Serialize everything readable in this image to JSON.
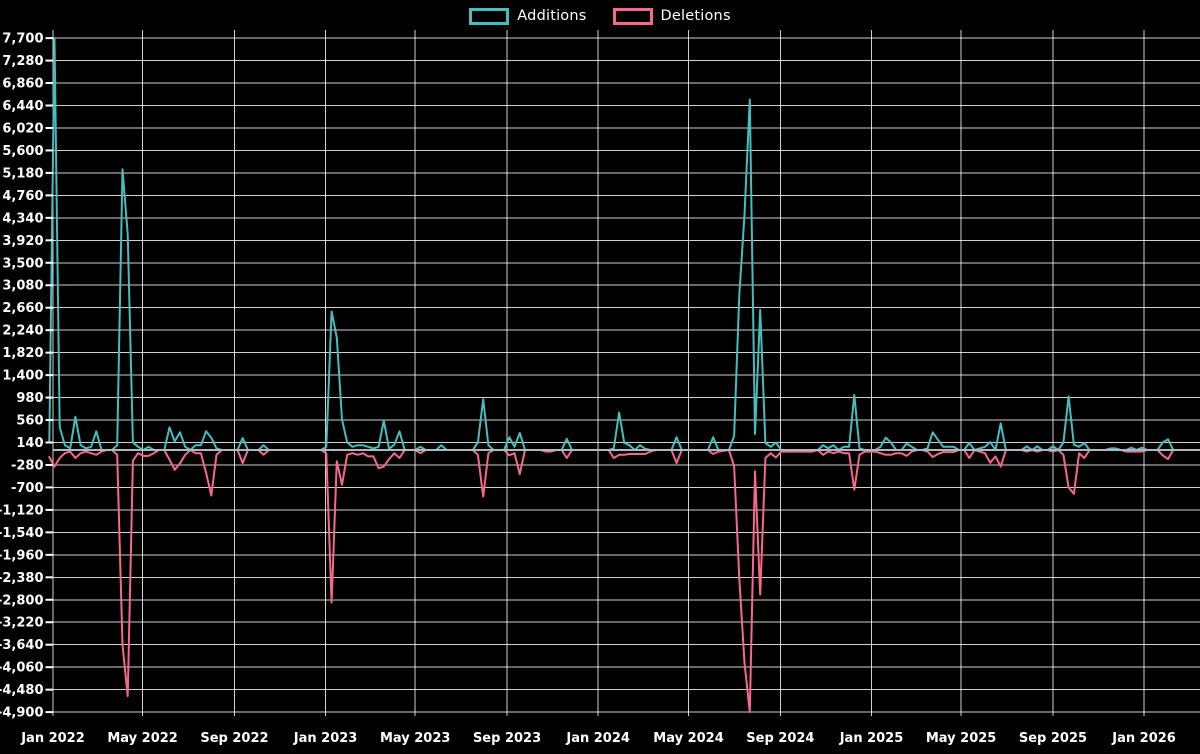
{
  "chart": {
    "background": "#000000",
    "gridline_color": "rgba(255,255,255,0.82)",
    "baseline_color": "#A9BAC1",
    "text_color": "#FFFFFF"
  },
  "chart_data": {
    "type": "line",
    "title": "",
    "legend_position": "top-center",
    "grid": true,
    "series": [
      {
        "name": "Additions",
        "color": "#46BDBE"
      },
      {
        "name": "Deletions",
        "color": "#F8688C"
      }
    ],
    "y_axis": {
      "min": -4900,
      "max": 7700,
      "step": 420,
      "tick_labels": [
        "7,700",
        "7,280",
        "6,860",
        "6,440",
        "6,020",
        "5,600",
        "5,180",
        "4,760",
        "4,340",
        "3,920",
        "3,500",
        "3,080",
        "2,660",
        "2,240",
        "1,820",
        "1,400",
        "980",
        "560",
        "140",
        "-280",
        "-700",
        "-1,120",
        "-1,540",
        "-1,960",
        "-2,380",
        "-2,800",
        "-3,220",
        "-3,640",
        "-4,060",
        "-4,480",
        "-4,900"
      ]
    },
    "x_axis": {
      "tick_labels": [
        "Jan 2022",
        "May 2022",
        "Sep 2022",
        "Jan 2023",
        "May 2023",
        "Sep 2023",
        "Jan 2024",
        "May 2024",
        "Sep 2024",
        "Jan 2025",
        "May 2025",
        "Sep 2025",
        "Jan 2026"
      ],
      "tick_month_offsets": [
        0,
        4,
        8,
        12,
        16,
        20,
        24,
        28,
        32,
        36,
        40,
        44,
        48
      ]
    },
    "points_format": [
      "week_start_date",
      "additions",
      "deletions"
    ],
    "points": [
      [
        "2021-12-27",
        140,
        -130
      ],
      [
        "2022-01-03",
        7700,
        -310
      ],
      [
        "2022-01-10",
        430,
        -150
      ],
      [
        "2022-01-17",
        90,
        -60
      ],
      [
        "2022-01-24",
        30,
        -30
      ],
      [
        "2022-01-31",
        620,
        -150
      ],
      [
        "2022-02-07",
        90,
        -60
      ],
      [
        "2022-02-14",
        30,
        -30
      ],
      [
        "2022-02-21",
        60,
        -60
      ],
      [
        "2022-02-28",
        350,
        -90
      ],
      [
        "2022-03-07",
        0,
        -30
      ],
      [
        "2022-03-14",
        0,
        0
      ],
      [
        "2022-03-21",
        0,
        0
      ],
      [
        "2022-03-28",
        90,
        -90
      ],
      [
        "2022-04-04",
        5250,
        -3640
      ],
      [
        "2022-04-11",
        4040,
        -4600
      ],
      [
        "2022-04-18",
        140,
        -200
      ],
      [
        "2022-04-25",
        60,
        -60
      ],
      [
        "2022-05-02",
        0,
        -110
      ],
      [
        "2022-05-09",
        60,
        -110
      ],
      [
        "2022-05-16",
        0,
        -60
      ],
      [
        "2022-05-23",
        0,
        0
      ],
      [
        "2022-05-30",
        0,
        0
      ],
      [
        "2022-06-06",
        425,
        -180
      ],
      [
        "2022-06-13",
        160,
        -370
      ],
      [
        "2022-06-20",
        330,
        -250
      ],
      [
        "2022-06-27",
        60,
        -90
      ],
      [
        "2022-07-04",
        0,
        0
      ],
      [
        "2022-07-11",
        90,
        -60
      ],
      [
        "2022-07-18",
        90,
        -60
      ],
      [
        "2022-07-25",
        350,
        -430
      ],
      [
        "2022-08-01",
        230,
        -850
      ],
      [
        "2022-08-08",
        30,
        -90
      ],
      [
        "2022-08-15",
        0,
        0
      ],
      [
        "2022-09-05",
        0,
        0
      ],
      [
        "2022-09-12",
        225,
        -245
      ],
      [
        "2022-09-19",
        0,
        0
      ],
      [
        "2022-10-03",
        0,
        0
      ],
      [
        "2022-10-10",
        90,
        -90
      ],
      [
        "2022-10-17",
        0,
        0
      ],
      [
        "2022-12-26",
        0,
        0
      ],
      [
        "2023-01-02",
        60,
        -60
      ],
      [
        "2023-01-09",
        2590,
        -2850
      ],
      [
        "2023-01-16",
        2100,
        -210
      ],
      [
        "2023-01-23",
        570,
        -650
      ],
      [
        "2023-01-30",
        140,
        -90
      ],
      [
        "2023-02-06",
        60,
        -60
      ],
      [
        "2023-02-13",
        90,
        -90
      ],
      [
        "2023-02-20",
        90,
        -60
      ],
      [
        "2023-02-27",
        60,
        -120
      ],
      [
        "2023-03-06",
        30,
        -120
      ],
      [
        "2023-03-13",
        60,
        -340
      ],
      [
        "2023-03-20",
        550,
        -310
      ],
      [
        "2023-03-27",
        20,
        -170
      ],
      [
        "2023-04-03",
        100,
        -60
      ],
      [
        "2023-04-10",
        350,
        -150
      ],
      [
        "2023-04-17",
        0,
        0
      ],
      [
        "2023-05-01",
        0,
        0
      ],
      [
        "2023-05-08",
        60,
        -60
      ],
      [
        "2023-05-15",
        0,
        0
      ],
      [
        "2023-05-29",
        0,
        0
      ],
      [
        "2023-06-05",
        90,
        0
      ],
      [
        "2023-06-12",
        0,
        0
      ],
      [
        "2023-07-17",
        0,
        0
      ],
      [
        "2023-07-24",
        140,
        -90
      ],
      [
        "2023-07-31",
        950,
        -870
      ],
      [
        "2023-08-07",
        90,
        -60
      ],
      [
        "2023-08-14",
        0,
        0
      ],
      [
        "2023-08-28",
        0,
        0
      ],
      [
        "2023-09-04",
        240,
        -100
      ],
      [
        "2023-09-11",
        60,
        -60
      ],
      [
        "2023-09-18",
        320,
        -450
      ],
      [
        "2023-09-25",
        0,
        0
      ],
      [
        "2023-10-16",
        0,
        0
      ],
      [
        "2023-10-23",
        0,
        -30
      ],
      [
        "2023-10-30",
        0,
        -30
      ],
      [
        "2023-11-06",
        0,
        0
      ],
      [
        "2023-11-13",
        0,
        0
      ],
      [
        "2023-11-20",
        210,
        -150
      ],
      [
        "2023-11-27",
        0,
        0
      ],
      [
        "2024-01-15",
        0,
        0
      ],
      [
        "2024-01-22",
        30,
        -150
      ],
      [
        "2024-01-29",
        700,
        -90
      ],
      [
        "2024-02-05",
        130,
        -90
      ],
      [
        "2024-02-12",
        90,
        -75
      ],
      [
        "2024-02-19",
        0,
        -75
      ],
      [
        "2024-02-26",
        90,
        -75
      ],
      [
        "2024-03-04",
        20,
        -75
      ],
      [
        "2024-03-11",
        0,
        -30
      ],
      [
        "2024-03-18",
        0,
        0
      ],
      [
        "2024-04-08",
        0,
        0
      ],
      [
        "2024-04-15",
        240,
        -245
      ],
      [
        "2024-04-22",
        0,
        0
      ],
      [
        "2024-05-27",
        0,
        0
      ],
      [
        "2024-06-03",
        240,
        -75
      ],
      [
        "2024-06-10",
        0,
        -30
      ],
      [
        "2024-06-24",
        0,
        0
      ],
      [
        "2024-07-01",
        260,
        -300
      ],
      [
        "2024-07-08",
        2900,
        -2400
      ],
      [
        "2024-07-15",
        4400,
        -3980
      ],
      [
        "2024-07-22",
        6550,
        -4900
      ],
      [
        "2024-07-29",
        300,
        -400
      ],
      [
        "2024-08-05",
        2620,
        -2700
      ],
      [
        "2024-08-12",
        130,
        -150
      ],
      [
        "2024-08-19",
        60,
        -60
      ],
      [
        "2024-08-26",
        140,
        -140
      ],
      [
        "2024-09-02",
        0,
        -30
      ],
      [
        "2024-09-30",
        0,
        -30
      ],
      [
        "2024-10-14",
        0,
        -30
      ],
      [
        "2024-10-21",
        0,
        0
      ],
      [
        "2024-10-28",
        90,
        -90
      ],
      [
        "2024-11-04",
        30,
        -30
      ],
      [
        "2024-11-11",
        90,
        -60
      ],
      [
        "2024-11-18",
        0,
        -30
      ],
      [
        "2024-11-25",
        60,
        -60
      ],
      [
        "2024-12-02",
        60,
        -60
      ],
      [
        "2024-12-09",
        1030,
        -740
      ],
      [
        "2024-12-16",
        30,
        -90
      ],
      [
        "2024-12-23",
        0,
        -30
      ],
      [
        "2024-12-30",
        0,
        -30
      ],
      [
        "2025-01-06",
        0,
        -30
      ],
      [
        "2025-01-13",
        60,
        -60
      ],
      [
        "2025-01-20",
        230,
        -90
      ],
      [
        "2025-01-27",
        140,
        -90
      ],
      [
        "2025-02-03",
        0,
        -60
      ],
      [
        "2025-02-10",
        0,
        -60
      ],
      [
        "2025-02-17",
        120,
        -110
      ],
      [
        "2025-02-24",
        60,
        -30
      ],
      [
        "2025-03-03",
        0,
        0
      ],
      [
        "2025-03-10",
        0,
        0
      ],
      [
        "2025-03-17",
        30,
        -30
      ],
      [
        "2025-03-24",
        330,
        -130
      ],
      [
        "2025-03-31",
        190,
        -75
      ],
      [
        "2025-04-07",
        60,
        -40
      ],
      [
        "2025-04-14",
        60,
        -40
      ],
      [
        "2025-04-21",
        60,
        -40
      ],
      [
        "2025-04-28",
        0,
        0
      ],
      [
        "2025-05-05",
        0,
        0
      ],
      [
        "2025-05-12",
        130,
        -150
      ],
      [
        "2025-05-19",
        0,
        0
      ],
      [
        "2025-06-02",
        60,
        -60
      ],
      [
        "2025-06-09",
        150,
        -240
      ],
      [
        "2025-06-16",
        0,
        -120
      ],
      [
        "2025-06-23",
        500,
        -310
      ],
      [
        "2025-06-30",
        0,
        0
      ],
      [
        "2025-07-21",
        0,
        0
      ],
      [
        "2025-07-28",
        70,
        -30
      ],
      [
        "2025-08-04",
        0,
        0
      ],
      [
        "2025-08-11",
        70,
        -30
      ],
      [
        "2025-08-18",
        0,
        0
      ],
      [
        "2025-08-25",
        0,
        0
      ],
      [
        "2025-09-01",
        70,
        -30
      ],
      [
        "2025-09-08",
        0,
        0
      ],
      [
        "2025-09-15",
        140,
        -90
      ],
      [
        "2025-09-22",
        1000,
        -700
      ],
      [
        "2025-09-29",
        100,
        -820
      ],
      [
        "2025-10-06",
        60,
        -60
      ],
      [
        "2025-10-13",
        130,
        -150
      ],
      [
        "2025-10-20",
        0,
        0
      ],
      [
        "2025-11-10",
        0,
        0
      ],
      [
        "2025-11-17",
        30,
        0
      ],
      [
        "2025-11-24",
        30,
        0
      ],
      [
        "2025-12-01",
        0,
        0
      ],
      [
        "2025-12-08",
        0,
        -30
      ],
      [
        "2025-12-15",
        45,
        -30
      ],
      [
        "2025-12-22",
        0,
        -30
      ],
      [
        "2025-12-29",
        45,
        -30
      ],
      [
        "2026-01-05",
        0,
        0
      ],
      [
        "2026-01-19",
        0,
        0
      ],
      [
        "2026-01-26",
        140,
        -100
      ],
      [
        "2026-02-02",
        200,
        -170
      ],
      [
        "2026-02-09",
        0,
        0
      ],
      [
        "2026-03-16",
        0,
        0
      ]
    ]
  }
}
